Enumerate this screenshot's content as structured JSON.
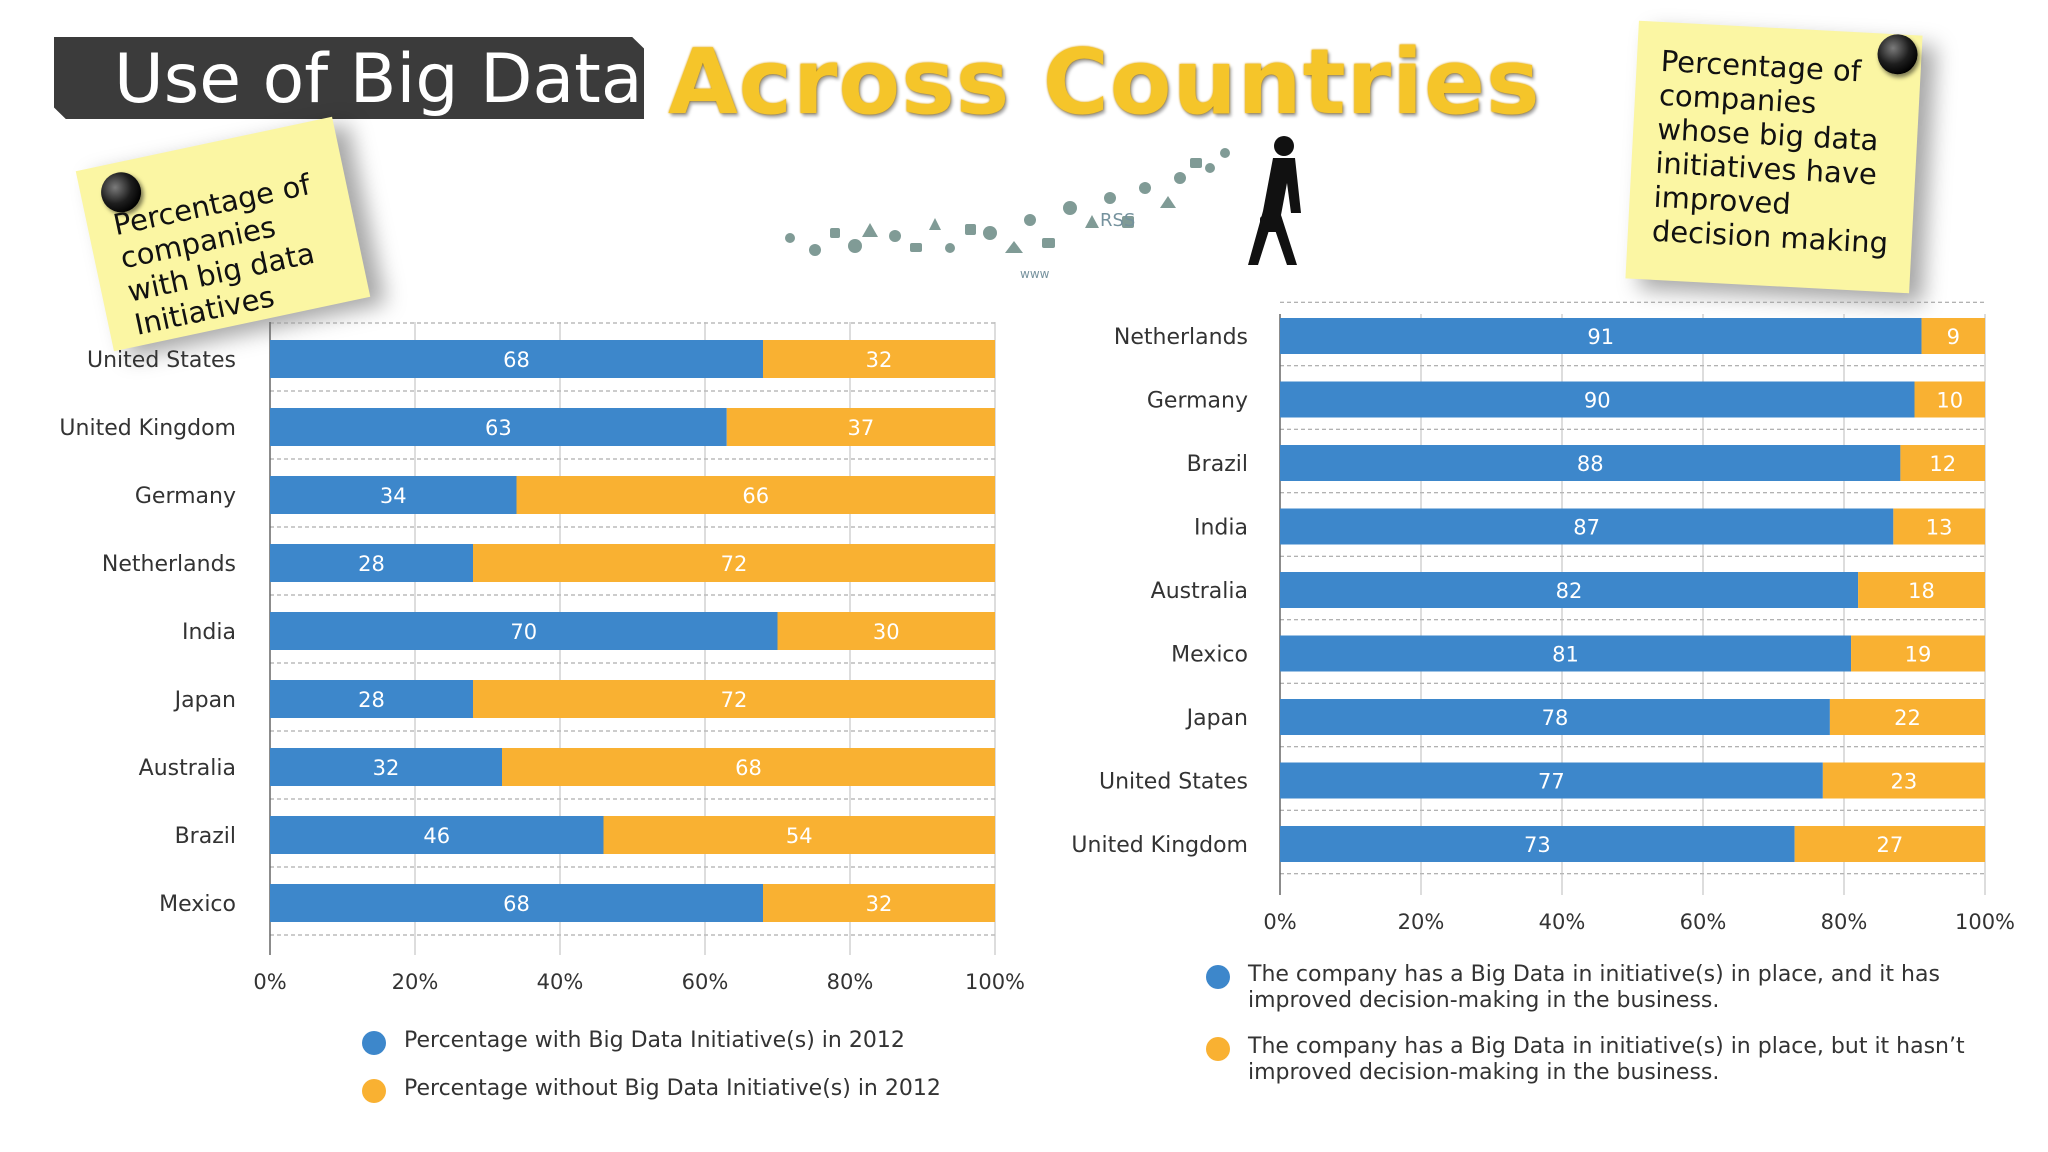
{
  "slide": {
    "title_main": "Use of Big Data",
    "title_accent": "Across Countries",
    "note_left": "Percentage of\ncompanies\nwith big data\nInitiatives",
    "note_right": "Percentage of\ncompanies\nwhose big data\ninitiatives have\nimproved\ndecision making"
  },
  "colors": {
    "blue": "#3d87cb",
    "orange": "#f9b132",
    "title_box": "#3b3b3b",
    "title_accent": "#f5c52a",
    "note": "#fbf6a3"
  },
  "chart_data": [
    {
      "type": "bar",
      "orientation": "horizontal",
      "stacked": true,
      "categories": [
        "United States",
        "United Kingdom",
        "Germany",
        "Netherlands",
        "India",
        "Japan",
        "Australia",
        "Brazil",
        "Mexico"
      ],
      "series": [
        {
          "name": "Percentage with Big Data Initiative(s) in 2012",
          "color": "#3d87cb",
          "values": [
            68,
            63,
            34,
            28,
            70,
            28,
            32,
            46,
            68
          ]
        },
        {
          "name": "Percentage without Big Data Initiative(s) in 2012",
          "color": "#f9b132",
          "values": [
            32,
            37,
            66,
            72,
            30,
            72,
            68,
            54,
            32
          ]
        }
      ],
      "xlim": [
        0,
        100
      ],
      "xticks": [
        "0%",
        "20%",
        "40%",
        "60%",
        "80%",
        "100%"
      ],
      "grid": true,
      "legend_position": "bottom"
    },
    {
      "type": "bar",
      "orientation": "horizontal",
      "stacked": true,
      "categories": [
        "Netherlands",
        "Germany",
        "Brazil",
        "India",
        "Australia",
        "Mexico",
        "Japan",
        "United States",
        "United Kingdom"
      ],
      "series": [
        {
          "name": "The company has a Big Data in initiative(s) in place, and it has improved decision-making in the business.",
          "color": "#3d87cb",
          "values": [
            91,
            90,
            88,
            87,
            82,
            81,
            78,
            77,
            73
          ]
        },
        {
          "name": "The company has a Big Data in initiative(s) in place, but it hasn’t improved decision-making in the business.",
          "color": "#f9b132",
          "values": [
            9,
            10,
            12,
            13,
            18,
            19,
            22,
            23,
            27
          ]
        }
      ],
      "xlim": [
        0,
        100
      ],
      "xticks": [
        "0%",
        "20%",
        "40%",
        "60%",
        "80%",
        "100%"
      ],
      "grid": true,
      "legend_position": "bottom"
    }
  ]
}
